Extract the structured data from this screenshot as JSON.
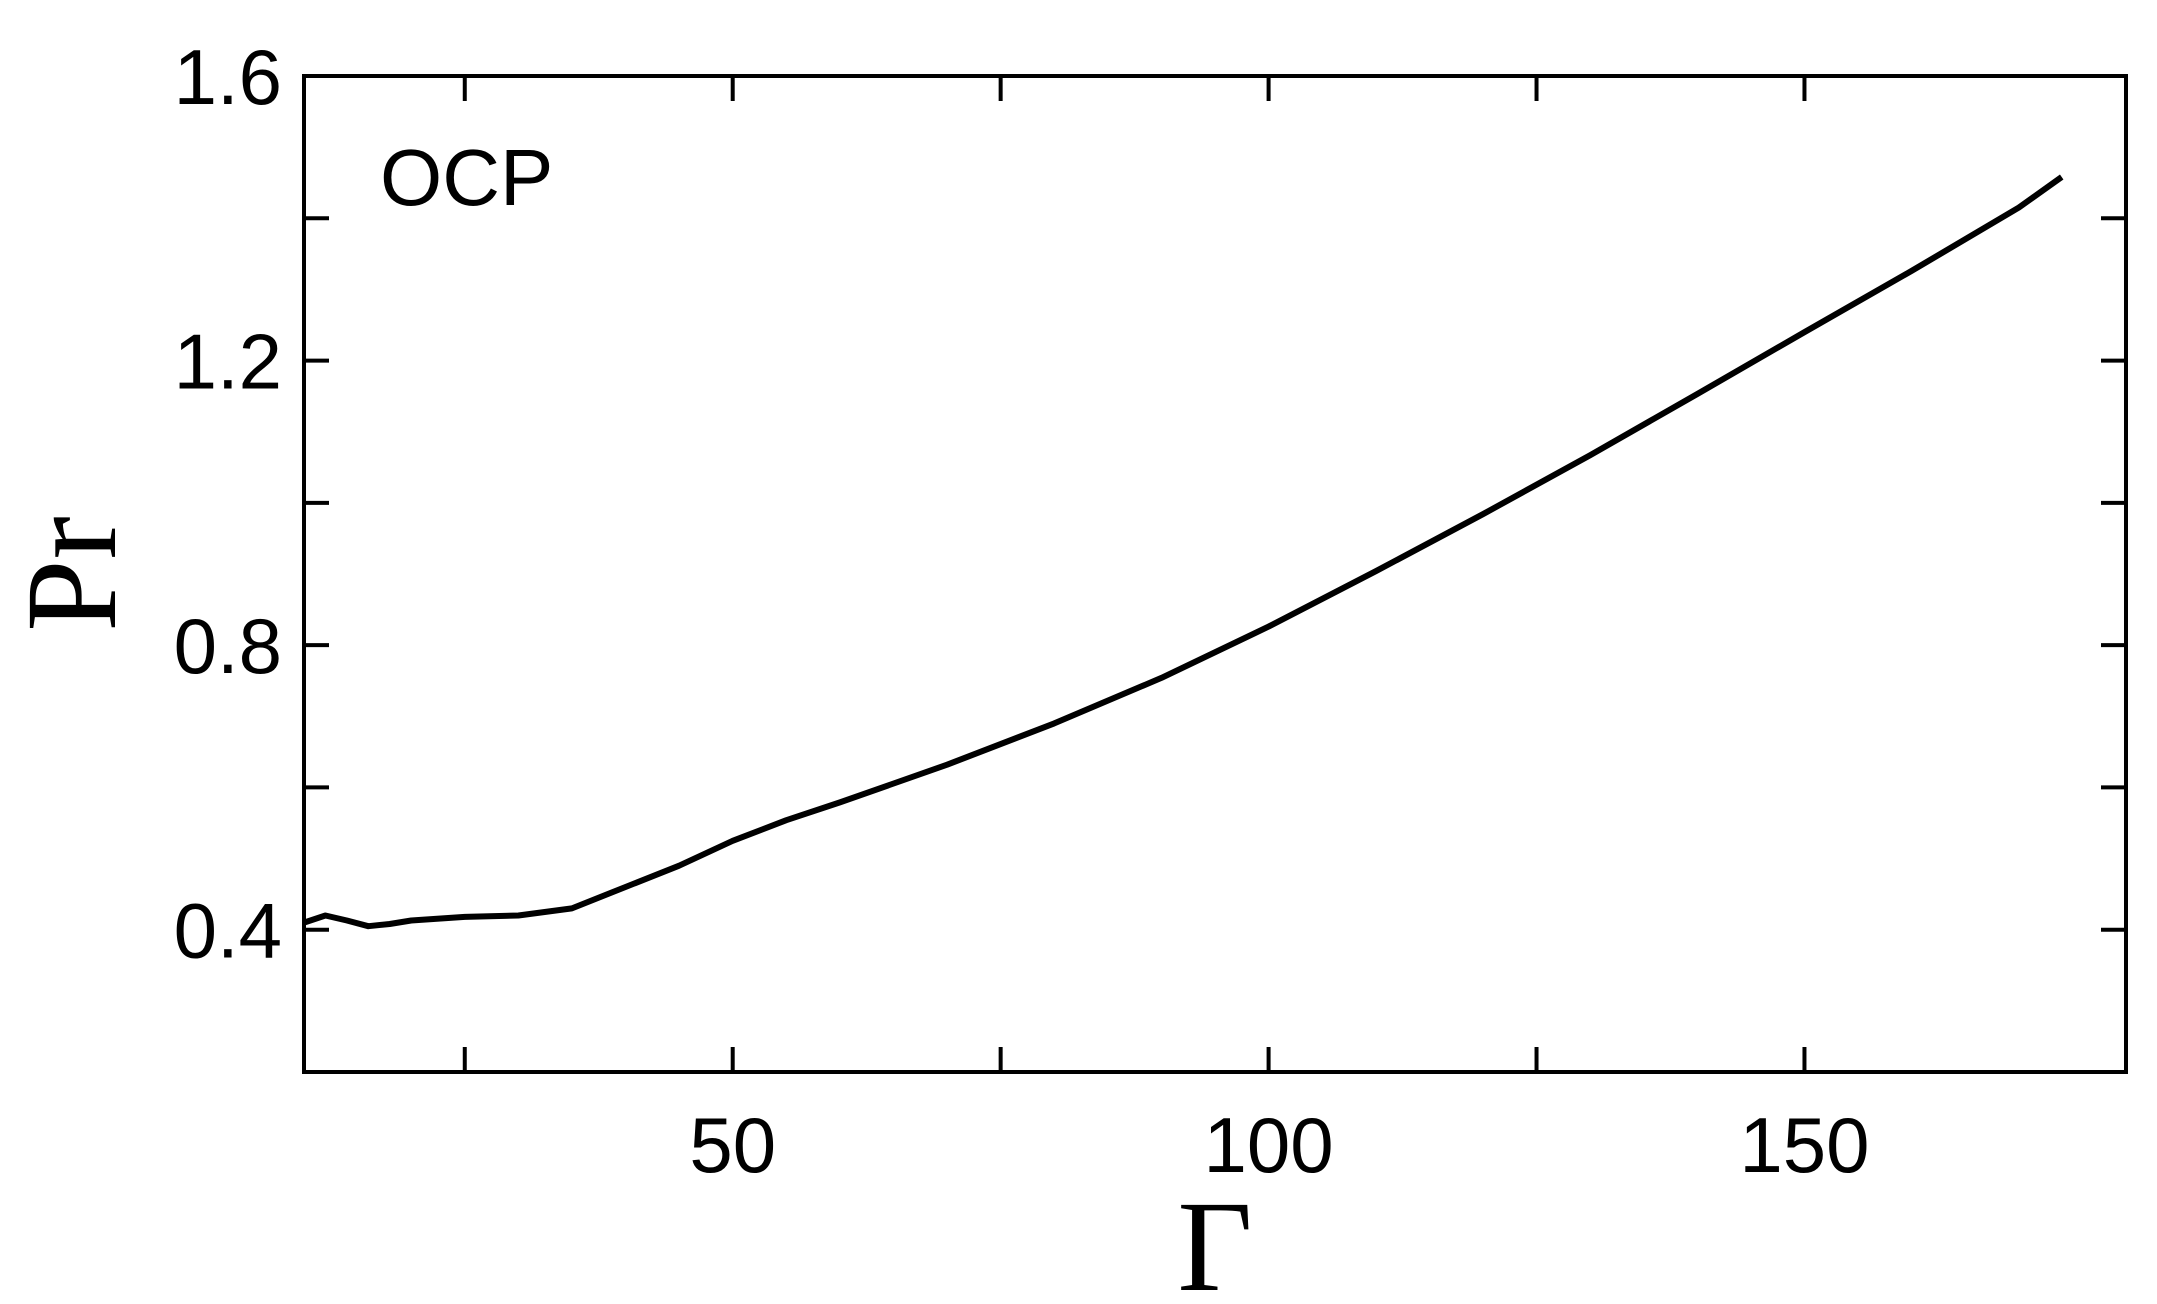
{
  "chart_data": {
    "type": "line",
    "annotation": "OCP",
    "x_label": "Γ",
    "y_label": "Pr",
    "color": "#000000",
    "x": [
      10,
      12,
      14,
      16,
      18,
      20,
      25,
      30,
      35,
      40,
      45,
      50,
      55,
      60,
      70,
      80,
      90,
      100,
      110,
      120,
      130,
      140,
      150,
      160,
      170,
      174
    ],
    "values": [
      0.41,
      0.42,
      0.413,
      0.405,
      0.408,
      0.413,
      0.418,
      0.42,
      0.43,
      0.46,
      0.49,
      0.525,
      0.554,
      0.579,
      0.632,
      0.69,
      0.754,
      0.826,
      0.904,
      0.984,
      1.067,
      1.153,
      1.24,
      1.326,
      1.415,
      1.458
    ],
    "xlim": [
      10,
      180
    ],
    "ylim": [
      0.2,
      1.6
    ],
    "xticks": [
      50,
      100,
      150
    ],
    "yticks": [
      0.4,
      0.8,
      1.2,
      1.6
    ],
    "xminorticks": [
      25,
      75,
      125
    ],
    "yminorticks": [
      0.6,
      1.0,
      1.4
    ]
  }
}
